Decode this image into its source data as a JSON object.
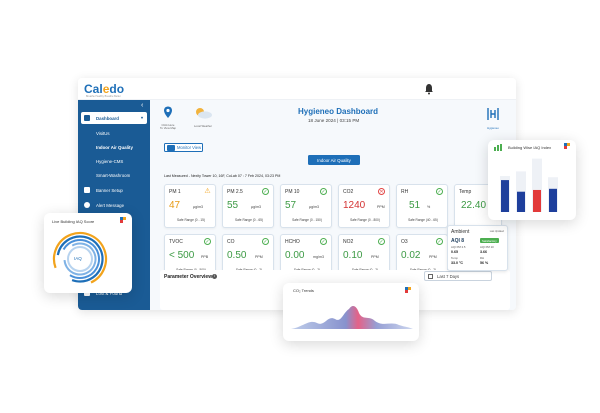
{
  "app": {
    "logo_left": "Cal",
    "logo_mid": "e",
    "logo_right": "do",
    "logo_tagline": "Breathe Healthy Breathe Better"
  },
  "sidebar": {
    "items": [
      {
        "label": "Dashboard"
      },
      {
        "label": "VisitUs"
      },
      {
        "label": "Indoor Air Quality"
      },
      {
        "label": "Hygiene-CMS"
      },
      {
        "label": "Smart-Washroom"
      },
      {
        "label": "Banner Setup"
      },
      {
        "label": "Alert Message"
      },
      {
        "label": "Lost & Found"
      }
    ]
  },
  "header": {
    "map_caption": "Click Here To View Map",
    "weather_caption": "Local Weather",
    "title": "Hygieneo Dashboard",
    "datetime": "18 June 2024 | 03:15 PM",
    "brand_caption": "Hygieneo",
    "monitor_view": "Monitor View",
    "tab_label": "Indoor Air Quality",
    "last_measured": "Last Measured - Nexity Tower 10, 16F, CoLab 07 : 7 Feb 2024, 03:23 PM"
  },
  "cards": [
    {
      "name": "PM 1",
      "value": "47",
      "unit": "µg/m3",
      "range": "Safe Range (0 - 15)",
      "status": "warn"
    },
    {
      "name": "PM 2.5",
      "value": "55",
      "unit": "µg/m3",
      "range": "Safe Range (0 - 65)",
      "status": "ok"
    },
    {
      "name": "PM 10",
      "value": "57",
      "unit": "µg/m3",
      "range": "Safe Range (0 - 150)",
      "status": "ok"
    },
    {
      "name": "CO2",
      "value": "1240",
      "unit": "PPM",
      "range": "Safe Range (0 - 800)",
      "status": "bad"
    },
    {
      "name": "RH",
      "value": "51",
      "unit": "%",
      "range": "Safe Range (40 - 65)",
      "status": "ok"
    },
    {
      "name": "Temp",
      "value": "22.40",
      "unit": "",
      "range": "",
      "status": "ok"
    },
    {
      "name": "TVOC",
      "value": "< 500",
      "unit": "PPB",
      "range": "Safe Range (0 - 500)",
      "status": "ok"
    },
    {
      "name": "CO",
      "value": "0.50",
      "unit": "PPM",
      "range": "Safe Range (0 - 2)",
      "status": "ok"
    },
    {
      "name": "HCHO",
      "value": "0.00",
      "unit": "mg/m3",
      "range": "Safe Range (0 - 2)",
      "status": "ok"
    },
    {
      "name": "NO2",
      "value": "0.10",
      "unit": "PPM",
      "range": "Safe Range (0 - 2)",
      "status": "ok"
    },
    {
      "name": "O3",
      "value": "0.02",
      "unit": "PPM",
      "range": "Safe Range (0 - 2)",
      "status": "ok"
    }
  ],
  "parameter": {
    "title": "Parameter Overview",
    "range_select": "Last 7 Days"
  },
  "live_panel": {
    "title": "Live Building IAQ Score",
    "center": "IAQ"
  },
  "building_panel": {
    "title": "Building Wise IAQ Index",
    "bars": [
      {
        "total": 0.62,
        "fill": 0.55,
        "color": "#1e3f9c"
      },
      {
        "total": 0.7,
        "fill": 0.35,
        "color": "#1e3f9c"
      },
      {
        "total": 0.92,
        "fill": 0.38,
        "color": "#e23a3a"
      },
      {
        "total": 0.6,
        "fill": 0.4,
        "color": "#1e3f9c"
      }
    ]
  },
  "co2_panel": {
    "title": "CO₂ Trends"
  },
  "ambient": {
    "title": "Ambient",
    "last_updated": "Last Updated",
    "aqi_label": "AQI",
    "aqi_value": "8",
    "badge": "Satisfactory",
    "pm25_label": "AQI PM 2.5",
    "pm25_value": "0.65",
    "pm10_label": "AQI PM 10",
    "pm10_value": "3.66",
    "temp_label": "Temp",
    "temp_value": "33.0 °C",
    "rh_label": "RH",
    "rh_value": "56 %"
  },
  "colors": {
    "primary": "#1e6fb8",
    "sidebar": "#1a5b95",
    "good": "#3c9a44",
    "warn": "#e89b14",
    "bad": "#d43333"
  }
}
